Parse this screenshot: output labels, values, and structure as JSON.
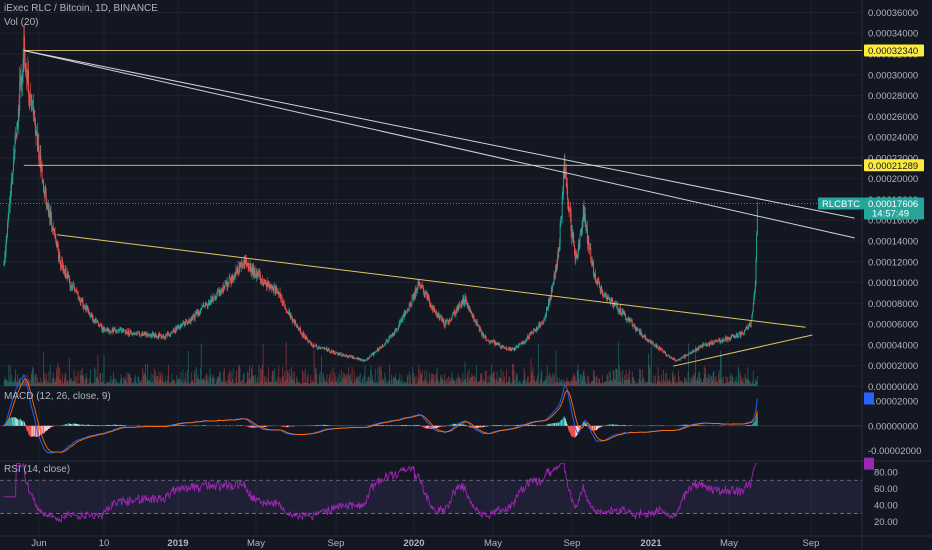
{
  "header": {
    "symbol_line": "iExec RLC / Bitcoin, 1D, BINANCE",
    "volume_label": "Vol (20)",
    "macd_label": "MACD (12, 26, close, 9)",
    "rsi_label": "RSI (14, close)"
  },
  "price_axis": {
    "ticks": [
      "0.00036000",
      "0.00034000",
      "0.00032000",
      "0.00030000",
      "0.00028000",
      "0.00026000",
      "0.00024000",
      "0.00022000",
      "0.00020000",
      "0.00018000",
      "0.00016000",
      "0.00014000",
      "0.00012000",
      "0.00010000",
      "0.00008000",
      "0.00006000",
      "0.00004000",
      "0.00002000",
      "0.00000000"
    ],
    "level_tags": [
      {
        "value": "0.00032340",
        "color": "#ffeb3b"
      },
      {
        "value": "0.00021289",
        "color": "#ffeb3b"
      }
    ],
    "last_price_tag": {
      "symbol": "RLCBTC",
      "value": "0.00017606",
      "countdown": "14:57:49",
      "color": "#26a69a"
    }
  },
  "macd_axis": {
    "ticks": [
      "0.00002000",
      "0.00000000",
      "-0.00002000"
    ]
  },
  "rsi_axis": {
    "ticks": [
      "80.00",
      "60.00",
      "40.00",
      "20.00"
    ]
  },
  "time_axis": {
    "labels": [
      "Jun",
      "10",
      "2019",
      "May",
      "Sep",
      "2020",
      "May",
      "Sep",
      "2021",
      "May",
      "Sep"
    ]
  },
  "chart_data": {
    "type": "candlestick",
    "symbol": "RLCBTC",
    "interval": "1D",
    "exchange": "BINANCE",
    "price_range": [
      -1.5e-06,
      0.000372
    ],
    "key_price_points": [
      {
        "date": "2018-05-22",
        "price": 0.0003234
      },
      {
        "date": "2018-06-05",
        "price": 0.00026
      },
      {
        "date": "2018-07-15",
        "price": 0.00012
      },
      {
        "date": "2018-09-15",
        "price": 5.5e-05
      },
      {
        "date": "2018-12-15",
        "price": 4.8e-05
      },
      {
        "date": "2019-04-10",
        "price": 0.00012
      },
      {
        "date": "2019-06-01",
        "price": 9e-05
      },
      {
        "date": "2019-07-20",
        "price": 4e-05
      },
      {
        "date": "2019-10-05",
        "price": 2.5e-05
      },
      {
        "date": "2019-11-15",
        "price": 5e-05
      },
      {
        "date": "2019-12-25",
        "price": 0.0001
      },
      {
        "date": "2020-02-01",
        "price": 6e-05
      },
      {
        "date": "2020-03-01",
        "price": 8.5e-05
      },
      {
        "date": "2020-04-01",
        "price": 4.5e-05
      },
      {
        "date": "2020-05-10",
        "price": 3.5e-05
      },
      {
        "date": "2020-06-25",
        "price": 6.5e-05
      },
      {
        "date": "2020-07-15",
        "price": 0.00012
      },
      {
        "date": "2020-07-25",
        "price": 0.00021289
      },
      {
        "date": "2020-08-12",
        "price": 0.00012
      },
      {
        "date": "2020-08-22",
        "price": 0.00017
      },
      {
        "date": "2020-09-10",
        "price": 0.0001
      },
      {
        "date": "2020-10-20",
        "price": 7e-05
      },
      {
        "date": "2020-12-15",
        "price": 3.5e-05
      },
      {
        "date": "2021-01-05",
        "price": 2.5e-05
      },
      {
        "date": "2021-02-15",
        "price": 4e-05
      },
      {
        "date": "2021-04-10",
        "price": 5e-05
      },
      {
        "date": "2021-04-25",
        "price": 6e-05
      },
      {
        "date": "2021-05-02",
        "price": 0.0001
      },
      {
        "date": "2021-05-05",
        "price": 0.00017606
      }
    ],
    "horizontal_levels": [
      0.0003234,
      0.00021289
    ],
    "trendlines": [
      {
        "color": "#d1d4dc",
        "from": {
          "date": "2018-05-22",
          "price": 0.0003234
        },
        "to": {
          "date": "2021-09-25",
          "price": 0.000162
        }
      },
      {
        "color": "#d1d4dc",
        "from": {
          "date": "2018-05-22",
          "price": 0.0003234
        },
        "to": {
          "date": "2021-09-25",
          "price": 0.000143
        }
      },
      {
        "color": "#e3c565",
        "from": {
          "date": "2018-07-10",
          "price": 0.000146
        },
        "to": {
          "date": "2021-07-15",
          "price": 5.7e-05
        }
      },
      {
        "color": "#e3c565",
        "from": {
          "date": "2021-01-01",
          "price": 1.95e-05
        },
        "to": {
          "date": "2021-07-25",
          "price": 4.95e-05
        }
      }
    ],
    "last_price": 0.00017606,
    "macd_range": [
      -2.75e-05,
      2.72e-05
    ],
    "rsi_range": [
      10,
      92
    ],
    "rsi_bands": [
      30,
      70
    ]
  },
  "colors": {
    "bull": "#26a69a",
    "bear": "#ef5350",
    "macd": "#2962ff",
    "signal": "#ff6d00",
    "rsi": "#9c27b0",
    "trend_white": "#d1d4dc",
    "trend_yellow": "#e3c565"
  }
}
